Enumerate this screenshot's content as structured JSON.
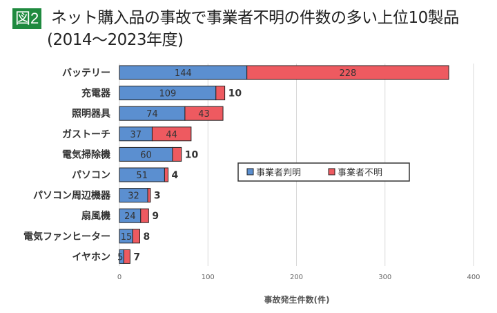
{
  "figure_label": "図2",
  "title": "ネット購入品の事故で事業者不明の件数の多い上位10製品",
  "subtitle": "(2014〜2023年度)",
  "chart_data": {
    "type": "bar",
    "orientation": "horizontal",
    "stacked": true,
    "categories": [
      "バッテリー",
      "充電器",
      "照明器具",
      "ガストーチ",
      "電気掃除機",
      "パソコン",
      "パソコン周辺機器",
      "扇風機",
      "電気ファンヒーター",
      "イヤホン"
    ],
    "series": [
      {
        "name": "事業者判明",
        "values": [
          144,
          109,
          74,
          37,
          60,
          51,
          32,
          24,
          15,
          5
        ],
        "color": "#5b8fd0"
      },
      {
        "name": "事業者不明",
        "values": [
          228,
          10,
          43,
          44,
          10,
          4,
          3,
          9,
          8,
          7
        ],
        "color": "#ee5a60"
      }
    ],
    "xlabel": "事故発生件数(件)",
    "xlim": [
      0,
      400
    ],
    "xticks": [
      0,
      100,
      200,
      300,
      400
    ],
    "grid": true,
    "legend": "center-right"
  }
}
